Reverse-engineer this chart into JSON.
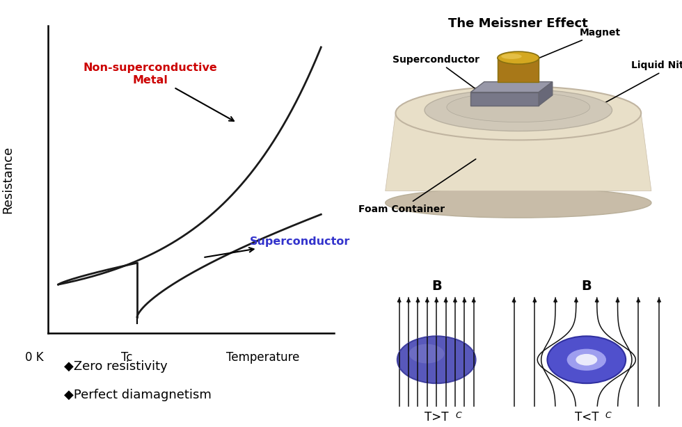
{
  "bg_color": "#ffffff",
  "curve_color": "#1a1a1a",
  "normal_metal_label": "Non-superconductive\nMetal",
  "normal_metal_color": "#cc0000",
  "superconductor_label": "Superconductor",
  "superconductor_color": "#3333cc",
  "ylabel": "Resistance",
  "xlabel_0K": "0 K",
  "xlabel_Tc": "Tc",
  "xlabel_Temp": "Temperature",
  "legend_bg": "#cceeff",
  "legend_item1": "◆Zero resistivity",
  "legend_item2": "◆Perfect diamagnetism",
  "legend_fontsize": 13,
  "meissner_title": "The Meissner Effect",
  "B_label": "B",
  "T_gt_Tc": "T>T",
  "T_lt_Tc": "T<T",
  "T_sub": "C",
  "sphere_left_color": "#5555bb",
  "sphere_right_color": "#4444cc",
  "arrow_color": "#111111",
  "field_line_color": "#111111",
  "foam_body_color": "#e8dfc8",
  "foam_rim_color": "#d4c8b0",
  "foam_inner_color": "#c8c0b0",
  "magnet_top_color": "#d4a820",
  "magnet_side_color": "#a87818",
  "sc_block_color": "#888898"
}
